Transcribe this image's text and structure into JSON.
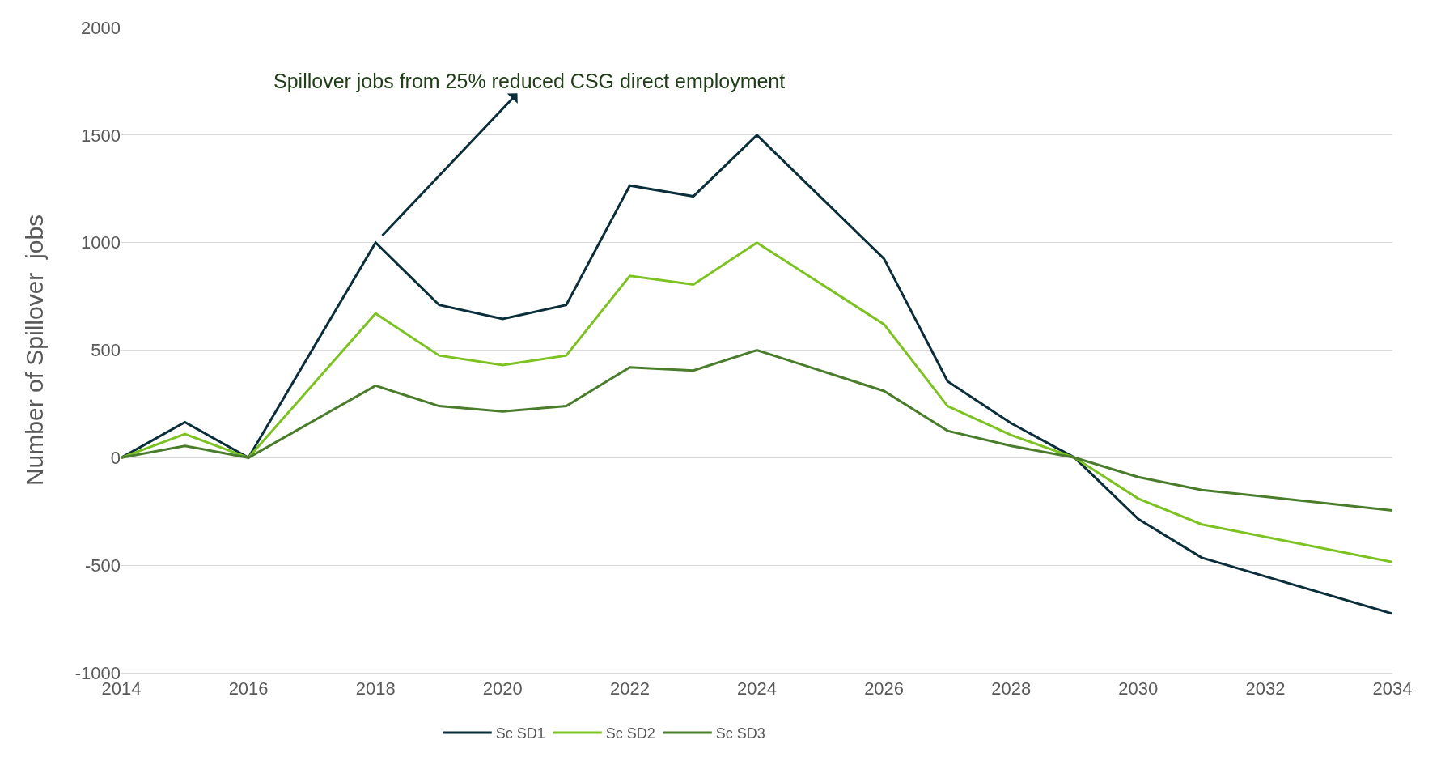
{
  "chart_data": {
    "type": "line",
    "ylabel": "Number of Spillover  jobs",
    "x": [
      2014,
      2015,
      2016,
      2018,
      2019,
      2020,
      2021,
      2022,
      2023,
      2024,
      2026,
      2027,
      2028,
      2029,
      2030,
      2031,
      2034
    ],
    "series": [
      {
        "name": "Sc SD1",
        "color": "#0b2e3b",
        "values": [
          0,
          165,
          0,
          1000,
          710,
          645,
          710,
          1265,
          1215,
          1500,
          925,
          355,
          160,
          0,
          -285,
          -465,
          -725
        ]
      },
      {
        "name": "Sc SD2",
        "color": "#7cc322",
        "values": [
          0,
          110,
          0,
          670,
          475,
          430,
          475,
          845,
          805,
          1000,
          620,
          240,
          105,
          0,
          -190,
          -310,
          -485
        ]
      },
      {
        "name": "Sc SD3",
        "color": "#4a7d2b",
        "values": [
          0,
          55,
          0,
          335,
          240,
          215,
          240,
          420,
          405,
          500,
          310,
          125,
          55,
          0,
          -90,
          -150,
          -245
        ]
      }
    ],
    "xlim": [
      2014,
      2034
    ],
    "xticks": [
      2014,
      2016,
      2018,
      2020,
      2022,
      2024,
      2026,
      2028,
      2030,
      2032,
      2034
    ],
    "ylim": [
      -1000,
      2000
    ],
    "yticks": [
      -1000,
      -500,
      0,
      500,
      1000,
      1500,
      2000
    ],
    "grid": "y",
    "legend": "bottom",
    "marker": "none",
    "line_style": "solid",
    "annotations": [
      {
        "text": "Spillover jobs from 25% reduced CSG direct employment",
        "x": 2018,
        "y": 1000
      }
    ]
  }
}
